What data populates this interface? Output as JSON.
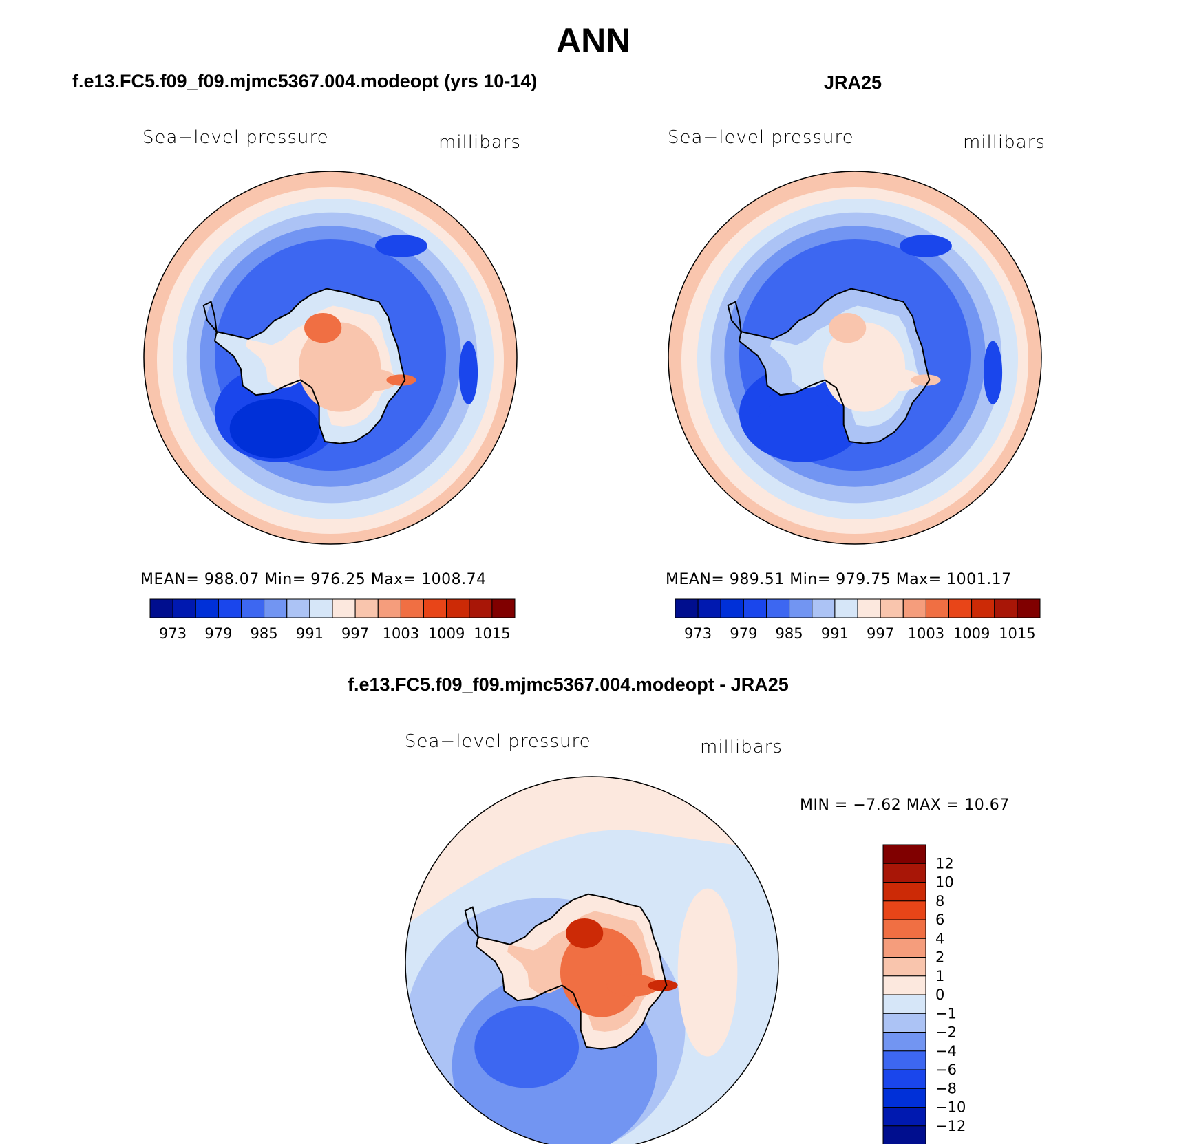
{
  "figure": {
    "title": "ANN",
    "diff_title": "f.e13.FC5.f09_f09.mjmc5367.004.modeopt - JRA25"
  },
  "panels": [
    {
      "id": "model",
      "title": "f.e13.FC5.f09_f09.mjmc5367.004.modeopt (yrs 10-14)",
      "variable": "Sea−level pressure",
      "units": "millibars",
      "stats": "MEAN=  988.07    Min=  976.25    Max=  1008.74",
      "colorbar": {
        "colors": [
          "#000e8e",
          "#0019b0",
          "#0030d8",
          "#1a46ec",
          "#3d67f1",
          "#7295f2",
          "#acc3f5",
          "#d6e6f8",
          "#fce8de",
          "#f9c5ad",
          "#f59d7c",
          "#f06f43",
          "#e84518",
          "#cc2a06",
          "#a81607",
          "#800000"
        ],
        "labels": [
          "973",
          "979",
          "985",
          "991",
          "997",
          "1003",
          "1009",
          "1015"
        ]
      },
      "map_colors": {
        "outer": "#f9c5ad",
        "ring1": "#fce8de",
        "ring2": "#d6e6f8",
        "ring3": "#acc3f5",
        "ring4": "#7295f2",
        "trough": "#3d67f1",
        "deep": "#1a46ec",
        "deepest": "#0030d8",
        "ice_low": "#d6e6f8",
        "ice_mid": "#fce8de",
        "ice_high": "#f9c5ad",
        "ice_peak": "#f06f43"
      }
    },
    {
      "id": "obs",
      "title": "JRA25",
      "variable": "Sea−level pressure",
      "units": "millibars",
      "stats": "MEAN=  989.51    Min=  979.75    Max=  1001.17",
      "colorbar": {
        "colors": [
          "#000e8e",
          "#0019b0",
          "#0030d8",
          "#1a46ec",
          "#3d67f1",
          "#7295f2",
          "#acc3f5",
          "#d6e6f8",
          "#fce8de",
          "#f9c5ad",
          "#f59d7c",
          "#f06f43",
          "#e84518",
          "#cc2a06",
          "#a81607",
          "#800000"
        ],
        "labels": [
          "973",
          "979",
          "985",
          "991",
          "997",
          "1003",
          "1009",
          "1015"
        ]
      },
      "map_colors": {
        "outer": "#f9c5ad",
        "ring1": "#fce8de",
        "ring2": "#d6e6f8",
        "ring3": "#acc3f5",
        "ring4": "#7295f2",
        "trough": "#3d67f1",
        "deep": "#1a46ec",
        "deepest": "#1a46ec",
        "ice_low": "#acc3f5",
        "ice_mid": "#d6e6f8",
        "ice_high": "#fce8de",
        "ice_peak": "#f9c5ad"
      }
    },
    {
      "id": "diff",
      "title": "",
      "variable": "Sea−level pressure",
      "units": "millibars",
      "stats": "MIN =   −7.62  MAX =   10.67",
      "colorbar": {
        "colors": [
          "#800000",
          "#a81607",
          "#cc2a06",
          "#e84518",
          "#f06f43",
          "#f59d7c",
          "#f9c5ad",
          "#fce8de",
          "#d6e6f8",
          "#acc3f5",
          "#7295f2",
          "#3d67f1",
          "#1a46ec",
          "#0030d8",
          "#0019b0",
          "#000e8e"
        ],
        "labels": [
          "12",
          "10",
          "8",
          "6",
          "4",
          "2",
          "1",
          "0",
          "−1",
          "−2",
          "−4",
          "−6",
          "−8",
          "−10",
          "−12"
        ]
      },
      "map_colors": {
        "outer": "#fce8de",
        "ring1": "#d6e6f8",
        "ring2": "#acc3f5",
        "ring3": "#7295f2",
        "trough": "#3d67f1",
        "ice_low": "#fce8de",
        "ice_mid": "#f9c5ad",
        "ice_high": "#f06f43",
        "ice_peak": "#cc2a06"
      }
    }
  ]
}
